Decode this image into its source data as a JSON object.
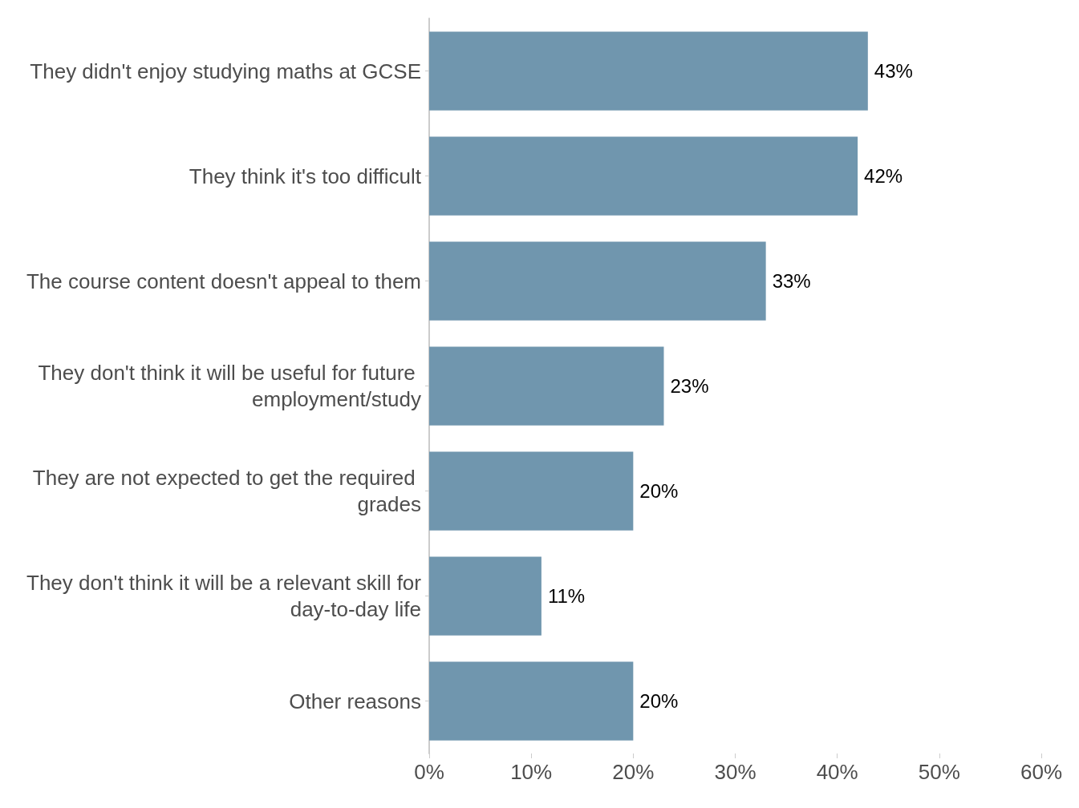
{
  "chart_data": {
    "type": "bar",
    "orientation": "horizontal",
    "categories": [
      "They didn't enjoy studying maths at GCSE",
      "They think it's too difficult",
      "The course content doesn't appeal to them",
      "They don't think it will be useful for future employment/study",
      "They are not expected to get the required grades",
      "They don't think it will be a relevant skill for day-to-day life",
      "Other reasons"
    ],
    "values": [
      43,
      42,
      33,
      23,
      20,
      11,
      20
    ],
    "color": "#7096ae",
    "value_labels": [
      "43%",
      "42%",
      "33%",
      "23%",
      "20%",
      "11%",
      "20%"
    ],
    "grid": false,
    "xlim": [
      0,
      60
    ],
    "xticks": [
      {
        "value": 0,
        "label": "0%"
      },
      {
        "value": 10,
        "label": "10%"
      },
      {
        "value": 20,
        "label": "20%"
      },
      {
        "value": 30,
        "label": "30%"
      },
      {
        "value": 40,
        "label": "40%"
      },
      {
        "value": 50,
        "label": "50%"
      },
      {
        "value": 60,
        "label": "60%"
      }
    ]
  }
}
